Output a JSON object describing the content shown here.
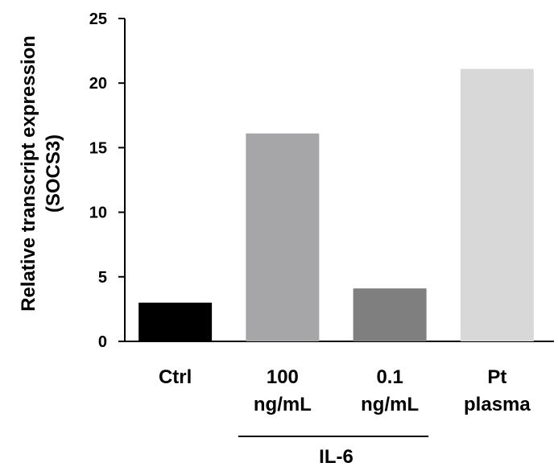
{
  "chart_data": {
    "type": "bar",
    "categories": [
      [
        "Ctrl"
      ],
      [
        "100",
        "ng/mL"
      ],
      [
        "0.1",
        "ng/mL"
      ],
      [
        "Pt",
        "plasma"
      ]
    ],
    "values": [
      3.0,
      16.1,
      4.1,
      21.1
    ],
    "colors": [
      "#000000",
      "#a6a6a8",
      "#7f7f7f",
      "#d8d8d8"
    ],
    "title": "",
    "xlabel": "",
    "ylabel": [
      "Relative transcript expression",
      "(SOCS3)"
    ],
    "ylim": [
      0,
      25
    ],
    "yticks": [
      0,
      5,
      10,
      15,
      20,
      25
    ],
    "grid": false,
    "legend": "none",
    "group_annotation": {
      "label": "IL-6",
      "spans_categories": [
        1,
        2
      ]
    }
  }
}
